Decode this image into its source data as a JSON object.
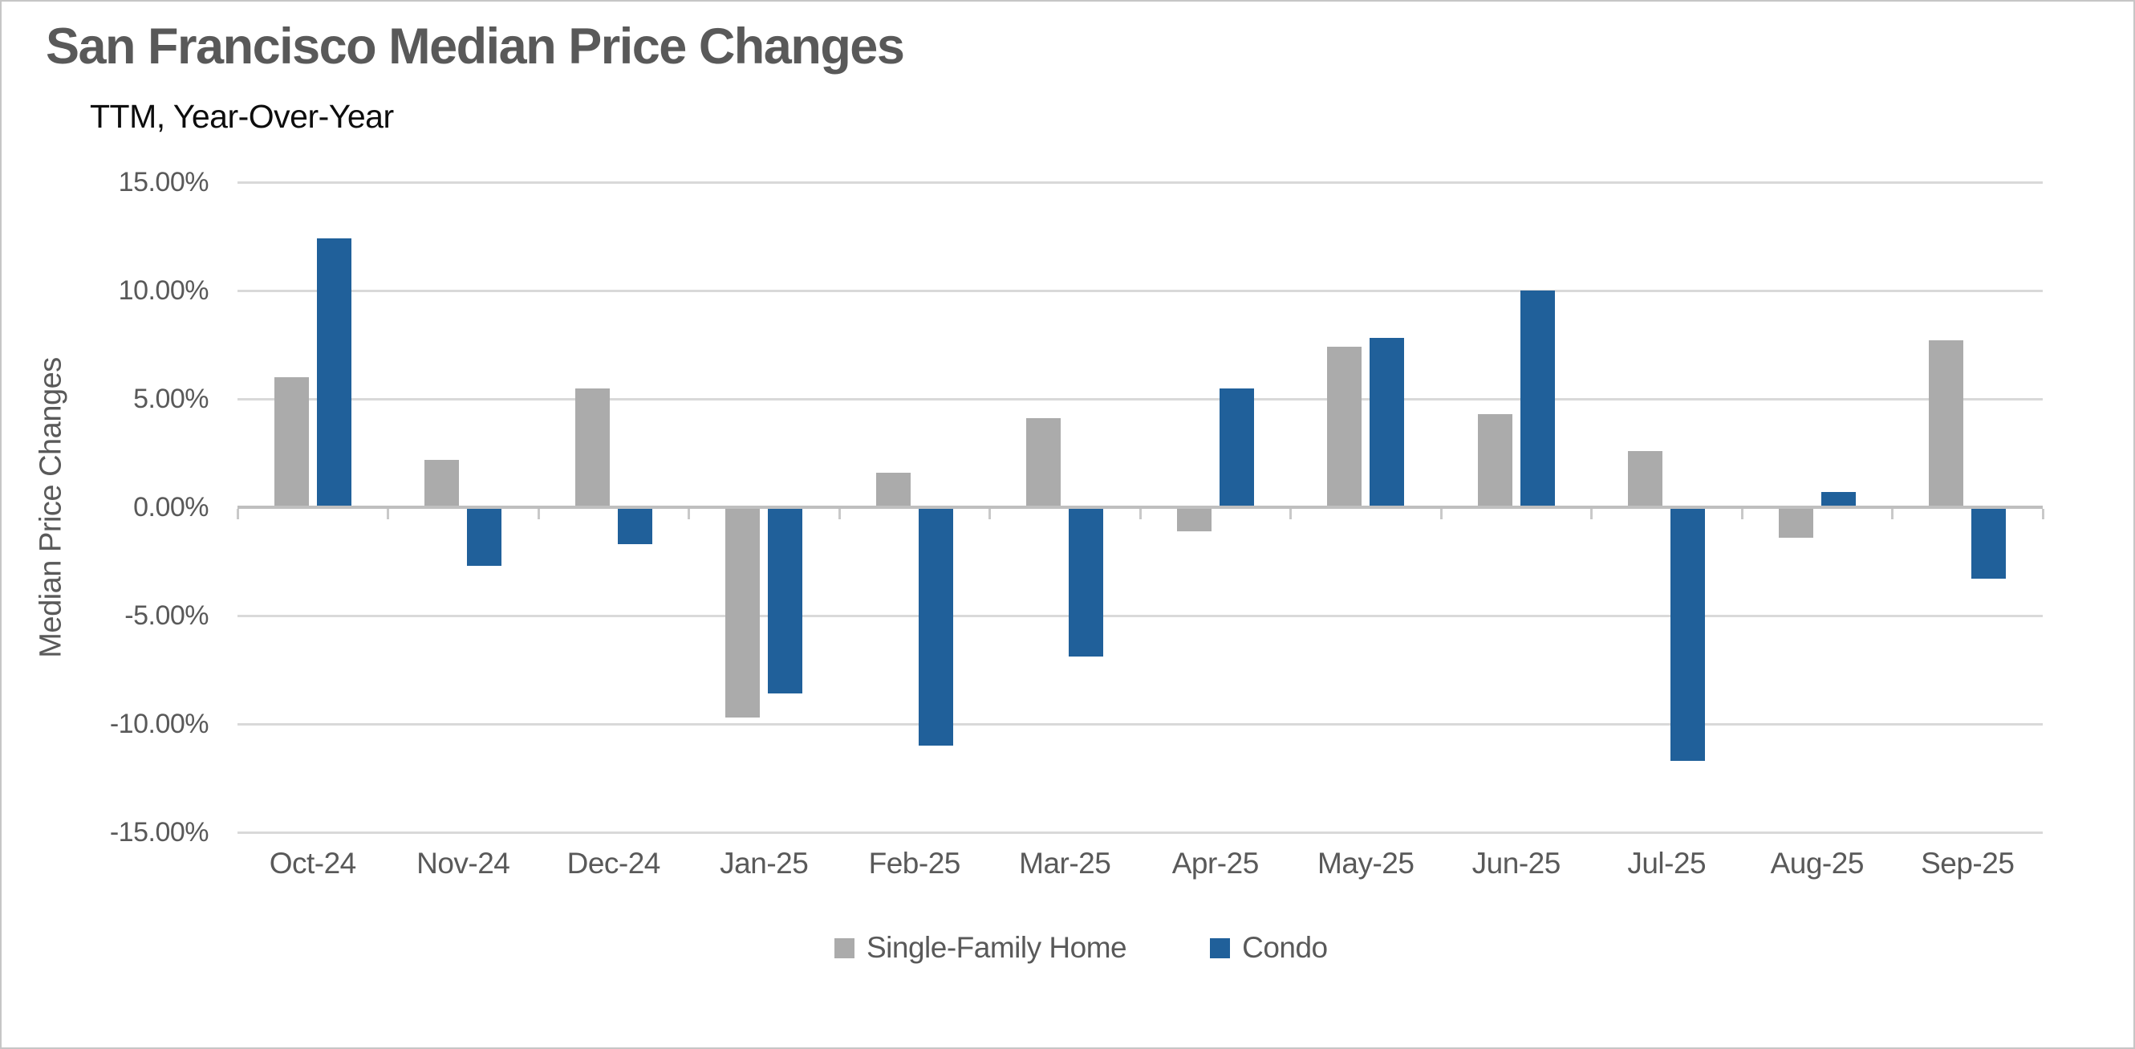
{
  "title": "San Francisco Median Price Changes",
  "subtitle": "TTM, Year-Over-Year",
  "chart_data": {
    "type": "bar",
    "title": "San Francisco Median Price Changes",
    "subtitle": "TTM, Year-Over-Year",
    "ylabel": "Median Price Changes",
    "xlabel": "",
    "categories": [
      "Oct-24",
      "Nov-24",
      "Dec-24",
      "Jan-25",
      "Feb-25",
      "Mar-25",
      "Apr-25",
      "May-25",
      "Jun-25",
      "Jul-25",
      "Aug-25",
      "Sep-25"
    ],
    "series": [
      {
        "name": "Single-Family Home",
        "color": "#ababab",
        "values": [
          6.0,
          2.2,
          5.5,
          -9.7,
          1.6,
          4.1,
          -1.1,
          7.4,
          4.3,
          2.6,
          -1.4,
          7.7
        ]
      },
      {
        "name": "Condo",
        "color": "#20609a",
        "values": [
          12.4,
          -2.7,
          -1.7,
          -8.6,
          -11.0,
          -6.9,
          5.5,
          7.8,
          10.0,
          -11.7,
          0.7,
          -3.3
        ]
      }
    ],
    "ylim": [
      -15,
      15
    ],
    "ytick_step": 5,
    "ytick_labels": [
      "15.00%",
      "10.00%",
      "5.00%",
      "0.00%",
      "-5.00%",
      "-10.00%",
      "-15.00%"
    ],
    "grid": "horizontal",
    "legend_position": "bottom"
  },
  "colors": {
    "gridline": "#d9d9d9",
    "axis_line": "#bfbfbf",
    "text_muted": "#595959",
    "series_single_family": "#ababab",
    "series_condo": "#20609a"
  }
}
